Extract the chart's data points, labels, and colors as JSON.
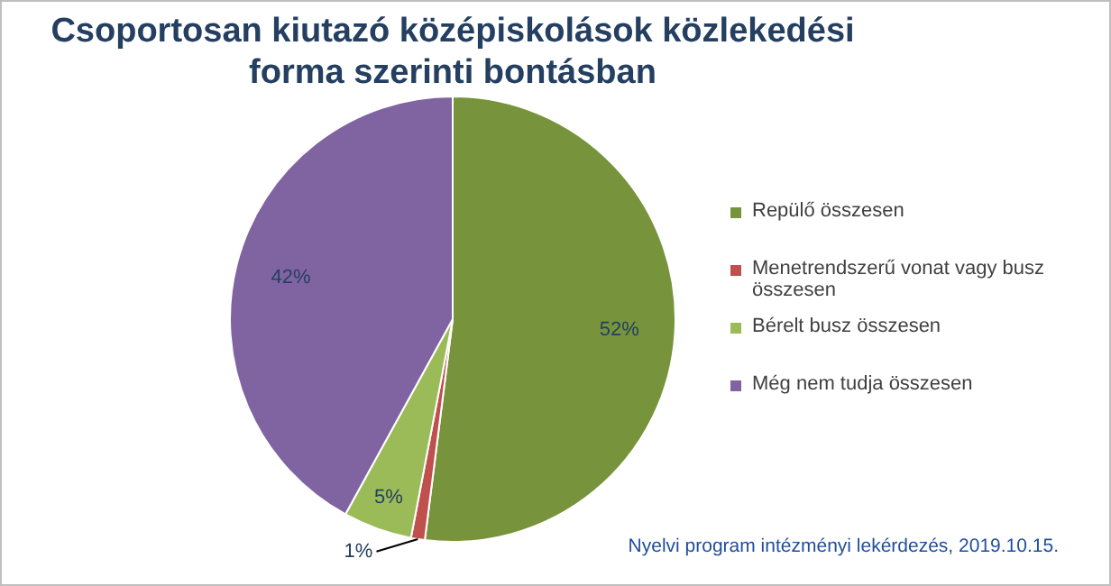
{
  "chart_data": {
    "type": "pie",
    "title": "Csoportosan kiutazó középiskolások közlekedési forma szerinti bontásban",
    "categories": [
      "Repülő összesen",
      "Menetrendszerű vonat vagy busz összesen",
      "Bérelt busz összesen",
      "Még nem tudja összesen"
    ],
    "values": [
      52,
      1,
      5,
      42
    ],
    "value_labels": [
      "52%",
      "1%",
      "5%",
      "42%"
    ],
    "colors": [
      "#77933c",
      "#c0504d",
      "#9bbb59",
      "#8064a2"
    ],
    "legend": "right",
    "annotations": [
      "Nyelvi program intézményi lekérdezés, 2019.10.15."
    ]
  }
}
